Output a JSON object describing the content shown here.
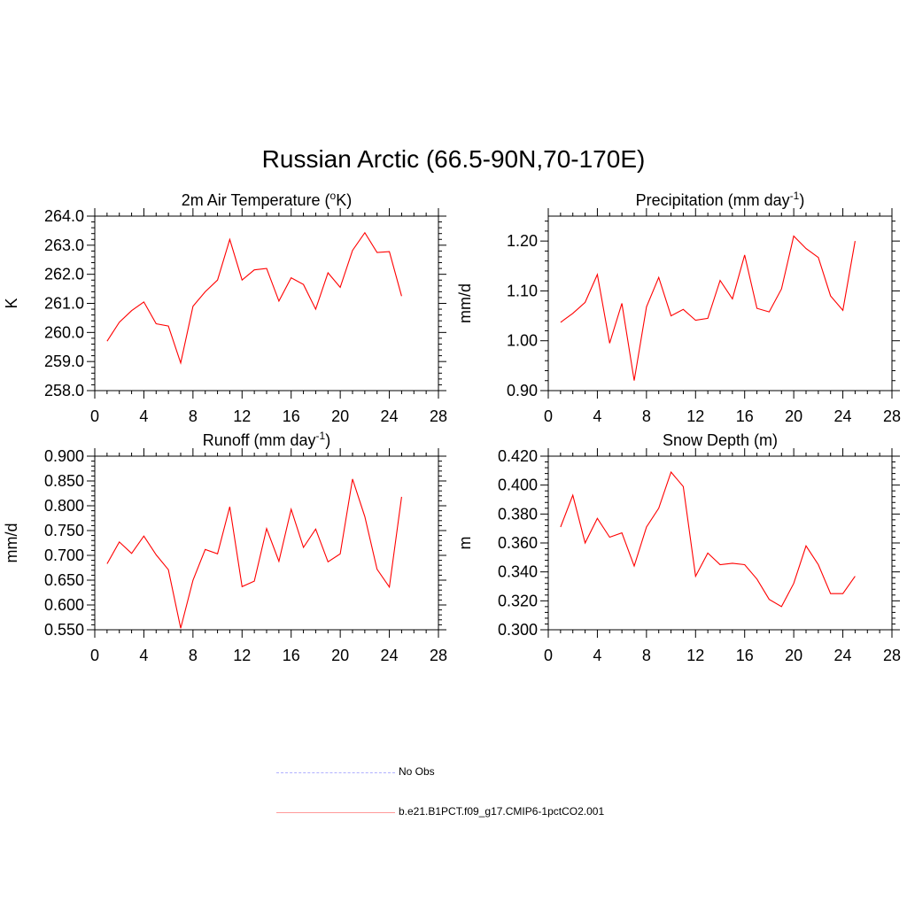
{
  "page": {
    "title": "Russian Arctic (66.5-90N,70-170E)"
  },
  "colors": {
    "model_line": "#ff0000",
    "obs_line": "#b0b0ff",
    "axis": "#000000"
  },
  "legend": {
    "items": [
      {
        "label": "No Obs",
        "style": "dashed",
        "color": "#b0b0ff"
      },
      {
        "label": "b.e21.B1PCT.f09_g17.CMIP6-1pctCO2.001",
        "style": "solid",
        "color": "#ff0000"
      }
    ]
  },
  "chart_data": [
    {
      "type": "line",
      "title_text": "2m Air Temperature (",
      "title_sup": "o",
      "title_tail": "K)",
      "ylabel": "K",
      "xlim": [
        0,
        28
      ],
      "ylim": [
        258.0,
        264.0
      ],
      "xticks": [
        0,
        4,
        8,
        12,
        16,
        20,
        24,
        28
      ],
      "yticks": [
        "258.0",
        "259.0",
        "260.0",
        "261.0",
        "262.0",
        "263.0",
        "264.0"
      ],
      "series": [
        {
          "x": [
            1,
            2,
            3,
            4,
            5,
            6,
            7,
            8,
            9,
            10,
            11,
            12,
            13,
            14,
            15,
            16,
            17,
            18,
            19,
            20,
            21,
            22,
            23,
            24,
            25
          ],
          "y": [
            259.7,
            260.35,
            260.75,
            261.05,
            260.3,
            260.22,
            258.95,
            260.9,
            261.4,
            261.8,
            263.2,
            261.8,
            262.15,
            262.2,
            261.08,
            261.88,
            261.65,
            260.8,
            262.05,
            261.55,
            262.82,
            263.43,
            262.75,
            262.78,
            261.25
          ]
        }
      ]
    },
    {
      "type": "line",
      "title_text": "Precipitation (mm day",
      "title_sup": "-1",
      "title_tail": ")",
      "ylabel": "mm/d",
      "xlim": [
        0,
        28
      ],
      "ylim": [
        0.9,
        1.25
      ],
      "xticks": [
        0,
        4,
        8,
        12,
        16,
        20,
        24,
        28
      ],
      "yticks": [
        "0.90",
        "1.00",
        "1.10",
        "1.20"
      ],
      "series": [
        {
          "x": [
            1,
            2,
            3,
            4,
            5,
            6,
            7,
            8,
            9,
            10,
            11,
            12,
            13,
            14,
            15,
            16,
            17,
            18,
            19,
            20,
            21,
            22,
            23,
            24,
            25
          ],
          "y": [
            1.037,
            1.055,
            1.077,
            1.133,
            0.995,
            1.075,
            0.92,
            1.068,
            1.127,
            1.05,
            1.063,
            1.041,
            1.045,
            1.121,
            1.084,
            1.172,
            1.065,
            1.058,
            1.104,
            1.21,
            1.185,
            1.167,
            1.09,
            1.061,
            1.2
          ]
        }
      ]
    },
    {
      "type": "line",
      "title_text": "Runoff (mm day",
      "title_sup": "-1",
      "title_tail": ")",
      "ylabel": "mm/d",
      "xlim": [
        0,
        28
      ],
      "ylim": [
        0.55,
        0.9
      ],
      "xticks": [
        0,
        4,
        8,
        12,
        16,
        20,
        24,
        28
      ],
      "yticks": [
        "0.550",
        "0.600",
        "0.650",
        "0.700",
        "0.750",
        "0.800",
        "0.850",
        "0.900"
      ],
      "series": [
        {
          "x": [
            1,
            2,
            3,
            4,
            5,
            6,
            7,
            8,
            9,
            10,
            11,
            12,
            13,
            14,
            15,
            16,
            17,
            18,
            19,
            20,
            21,
            22,
            23,
            24,
            25
          ],
          "y": [
            0.683,
            0.727,
            0.704,
            0.739,
            0.701,
            0.671,
            0.553,
            0.65,
            0.712,
            0.703,
            0.798,
            0.637,
            0.648,
            0.754,
            0.688,
            0.793,
            0.716,
            0.753,
            0.687,
            0.703,
            0.854,
            0.778,
            0.672,
            0.636,
            0.818
          ]
        }
      ]
    },
    {
      "type": "line",
      "title_text": "Snow Depth (m)",
      "title_sup": "",
      "title_tail": "",
      "ylabel": "m",
      "xlim": [
        0,
        28
      ],
      "ylim": [
        0.3,
        0.42
      ],
      "xticks": [
        0,
        4,
        8,
        12,
        16,
        20,
        24,
        28
      ],
      "yticks": [
        "0.300",
        "0.320",
        "0.340",
        "0.360",
        "0.380",
        "0.400",
        "0.420"
      ],
      "series": [
        {
          "x": [
            1,
            2,
            3,
            4,
            5,
            6,
            7,
            8,
            9,
            10,
            11,
            12,
            13,
            14,
            15,
            16,
            17,
            18,
            19,
            20,
            21,
            22,
            23,
            24,
            25
          ],
          "y": [
            0.371,
            0.393,
            0.36,
            0.377,
            0.364,
            0.367,
            0.344,
            0.371,
            0.384,
            0.409,
            0.399,
            0.337,
            0.353,
            0.345,
            0.346,
            0.345,
            0.335,
            0.321,
            0.316,
            0.332,
            0.358,
            0.345,
            0.325,
            0.325,
            0.337
          ]
        }
      ]
    }
  ]
}
